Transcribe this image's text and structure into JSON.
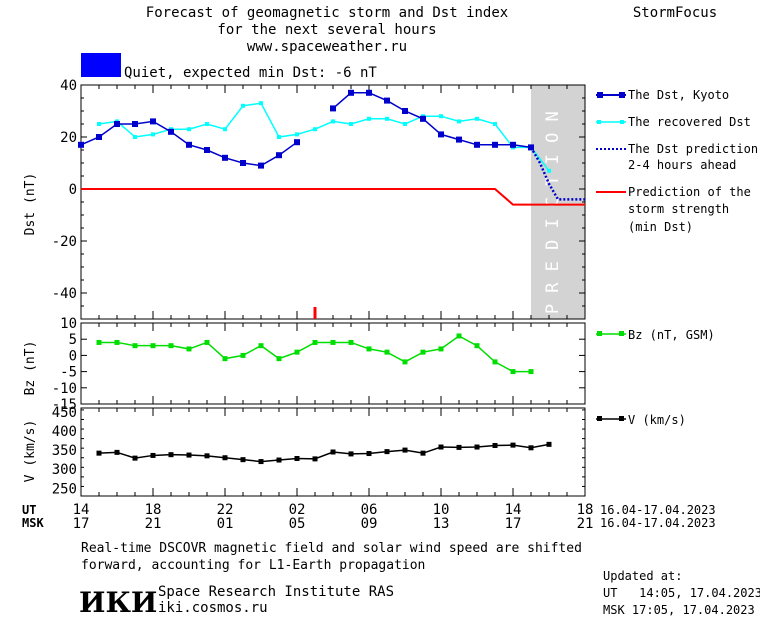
{
  "header": {
    "title_line1": "Forecast of geomagnetic storm and Dst index",
    "title_line2": "for the next several hours",
    "site": "www.spaceweather.ru",
    "brand": "StormFocus"
  },
  "status": {
    "label": "Quiet, expected min Dst: -6 nT",
    "color": "#0000ff"
  },
  "prediction_band_text": "PREDICTION",
  "time_axis": {
    "ut_label": "UT",
    "msk_label": "MSK",
    "ut_ticks": [
      "14",
      "18",
      "22",
      "02",
      "06",
      "10",
      "14",
      "18"
    ],
    "msk_ticks": [
      "17",
      "21",
      "01",
      "05",
      "09",
      "13",
      "17",
      "21"
    ],
    "date_range_ut": "16.04-17.04.2023",
    "date_range_msk": "16.04-17.04.2023"
  },
  "footer": {
    "note_line1": "Real-time DSCOVR magnetic field and solar wind speed are shifted",
    "note_line2": "forward, accounting for L1-Earth propagation",
    "logo_text": "ИКИ",
    "institute": "Space Research Institute RAS",
    "institute_url": "iki.cosmos.ru",
    "updated_label": "Updated at:",
    "updated_ut": "UT   14:05, 17.04.2023",
    "updated_msk": "MSK 17:05, 17.04.2023"
  },
  "chart_data": [
    {
      "type": "line",
      "ylabel": "Dst (nT)",
      "xlim": [
        14,
        42
      ],
      "ylim": [
        -50,
        40
      ],
      "yticks": [
        40,
        20,
        0,
        -20,
        -40
      ],
      "prediction_region": [
        39,
        42
      ],
      "series": [
        {
          "name": "The Dst, Kyoto",
          "color": "#0000cc",
          "x": [
            14,
            15,
            16,
            17,
            18,
            19,
            20,
            21,
            22,
            23,
            24,
            25,
            26,
            27,
            28,
            29,
            30,
            31,
            32,
            33,
            34,
            35,
            36,
            37,
            38,
            39
          ],
          "y": [
            17,
            20,
            25,
            25,
            26,
            22,
            17,
            15,
            12,
            10,
            9,
            13,
            18,
            null,
            31,
            37,
            37,
            34,
            30,
            27,
            21,
            19,
            17,
            17,
            17,
            16
          ]
        },
        {
          "name": "The recovered Dst",
          "color": "#00ffff",
          "x": [
            15,
            16,
            17,
            18,
            19,
            20,
            21,
            22,
            23,
            24,
            25,
            26,
            27,
            28,
            29,
            30,
            31,
            32,
            33,
            34,
            35,
            36,
            37,
            38,
            39,
            40
          ],
          "y": [
            25,
            26,
            20,
            21,
            23,
            23,
            25,
            23,
            32,
            33,
            20,
            21,
            23,
            26,
            25,
            27,
            27,
            25,
            28,
            28,
            26,
            27,
            25,
            16,
            16,
            7
          ]
        },
        {
          "name": "The Dst prediction 2-4 hours ahead",
          "color": "#0000cc",
          "x": [
            39,
            39.5,
            40,
            40.5,
            41,
            41.5,
            42
          ],
          "y": [
            16,
            10,
            2,
            -4,
            -4,
            -4,
            -4
          ]
        },
        {
          "name": "Prediction of the storm strength (min Dst)",
          "color": "#ff0000",
          "x": [
            14,
            37,
            38,
            42
          ],
          "y": [
            0,
            0,
            -6,
            -6
          ]
        }
      ],
      "marker": {
        "x": 27,
        "color": "#ff0000"
      }
    },
    {
      "type": "line",
      "ylabel": "Bz (nT)",
      "xlim": [
        14,
        42
      ],
      "ylim": [
        -15,
        10
      ],
      "yticks": [
        10,
        5,
        0,
        -5,
        -10,
        -15
      ],
      "series": [
        {
          "name": "Bz (nT, GSM)",
          "color": "#00dd00",
          "x": [
            15,
            16,
            17,
            18,
            19,
            20,
            21,
            22,
            23,
            24,
            25,
            26,
            27,
            28,
            29,
            30,
            31,
            32,
            33,
            34,
            35,
            36,
            37,
            38,
            39,
            40
          ],
          "y": [
            4,
            4,
            3,
            3,
            3,
            2,
            4,
            -1,
            0,
            3,
            -1,
            1,
            4,
            4,
            4,
            2,
            1,
            -2,
            1,
            2,
            6,
            3,
            -2,
            -5,
            -5,
            null
          ]
        }
      ]
    },
    {
      "type": "line",
      "ylabel": "V (km/s)",
      "xlim": [
        14,
        42
      ],
      "ylim": [
        230,
        460
      ],
      "yticks": [
        450,
        400,
        350,
        300,
        250
      ],
      "series": [
        {
          "name": "V (km/s)",
          "color": "#000000",
          "x": [
            15,
            16,
            17,
            18,
            19,
            20,
            21,
            22,
            23,
            24,
            25,
            26,
            27,
            28,
            29,
            30,
            31,
            32,
            33,
            34,
            35,
            36,
            37,
            38,
            39,
            40
          ],
          "y": [
            342,
            344,
            329,
            336,
            338,
            337,
            335,
            330,
            325,
            320,
            324,
            328,
            327,
            345,
            340,
            341,
            346,
            350,
            342,
            358,
            357,
            358,
            362,
            363,
            356,
            365
          ]
        }
      ]
    }
  ]
}
